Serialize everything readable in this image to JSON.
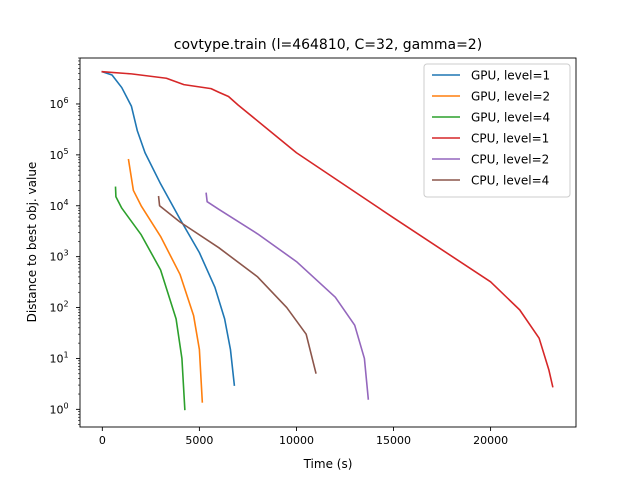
{
  "chart_data": {
    "type": "line",
    "title": "covtype.train (l=464810, C=32, gamma=2)",
    "xlabel": "Time (s)",
    "ylabel": "Distance to best obj. value",
    "xscale": "linear",
    "yscale": "log",
    "xlim": [
      -1150,
      24400
    ],
    "ylim": [
      0.45,
      8000000
    ],
    "xticks": [
      0,
      5000,
      10000,
      15000,
      20000
    ],
    "yticks": [
      1,
      10,
      100,
      1000,
      10000,
      100000,
      1000000
    ],
    "ytick_labels": [
      {
        "base": "10",
        "exp": "0"
      },
      {
        "base": "10",
        "exp": "1"
      },
      {
        "base": "10",
        "exp": "2"
      },
      {
        "base": "10",
        "exp": "3"
      },
      {
        "base": "10",
        "exp": "4"
      },
      {
        "base": "10",
        "exp": "5"
      },
      {
        "base": "10",
        "exp": "6"
      }
    ],
    "grid": false,
    "legend_position": "top-right",
    "series": [
      {
        "name": "GPU, level=1",
        "color": "#1f77b4",
        "points": [
          [
            0,
            4300000
          ],
          [
            500,
            3700000
          ],
          [
            1000,
            2100000
          ],
          [
            1500,
            900000
          ],
          [
            1800,
            300000
          ],
          [
            2200,
            110000
          ],
          [
            3000,
            27000
          ],
          [
            4000,
            5500
          ],
          [
            5000,
            1200
          ],
          [
            5800,
            250
          ],
          [
            6300,
            60
          ],
          [
            6600,
            15
          ],
          [
            6800,
            3
          ]
        ]
      },
      {
        "name": "GPU, level=2",
        "color": "#ff7f0e",
        "points": [
          [
            1350,
            80000
          ],
          [
            1600,
            20000
          ],
          [
            2000,
            10000
          ],
          [
            3000,
            2500
          ],
          [
            4000,
            450
          ],
          [
            4700,
            70
          ],
          [
            5000,
            15
          ],
          [
            5150,
            1.4
          ]
        ]
      },
      {
        "name": "GPU, level=4",
        "color": "#2ca02c",
        "points": [
          [
            680,
            23000
          ],
          [
            700,
            15000
          ],
          [
            1000,
            9000
          ],
          [
            2000,
            2700
          ],
          [
            3000,
            550
          ],
          [
            3800,
            60
          ],
          [
            4100,
            10
          ],
          [
            4250,
            1
          ]
        ]
      },
      {
        "name": "CPU, level=1",
        "color": "#d62728",
        "points": [
          [
            0,
            4300000
          ],
          [
            1500,
            3900000
          ],
          [
            3300,
            3200000
          ],
          [
            4200,
            2400000
          ],
          [
            5600,
            2000000
          ],
          [
            6000,
            1700000
          ],
          [
            6500,
            1400000
          ],
          [
            7000,
            950000
          ],
          [
            10000,
            110000
          ],
          [
            15000,
            5800
          ],
          [
            20000,
            320
          ],
          [
            21500,
            90
          ],
          [
            22500,
            25
          ],
          [
            23000,
            6
          ],
          [
            23200,
            2.8
          ]
        ]
      },
      {
        "name": "CPU, level=2",
        "color": "#9467bd",
        "points": [
          [
            5350,
            17500
          ],
          [
            5400,
            12000
          ],
          [
            6000,
            8500
          ],
          [
            8000,
            2800
          ],
          [
            10000,
            800
          ],
          [
            12000,
            160
          ],
          [
            13000,
            45
          ],
          [
            13500,
            10
          ],
          [
            13700,
            1.6
          ]
        ]
      },
      {
        "name": "CPU, level=4",
        "color": "#8c564b",
        "points": [
          [
            2900,
            15000
          ],
          [
            2950,
            10000
          ],
          [
            4000,
            4800
          ],
          [
            6000,
            1500
          ],
          [
            8000,
            400
          ],
          [
            9500,
            100
          ],
          [
            10500,
            30
          ],
          [
            11000,
            5.2
          ]
        ]
      }
    ]
  }
}
